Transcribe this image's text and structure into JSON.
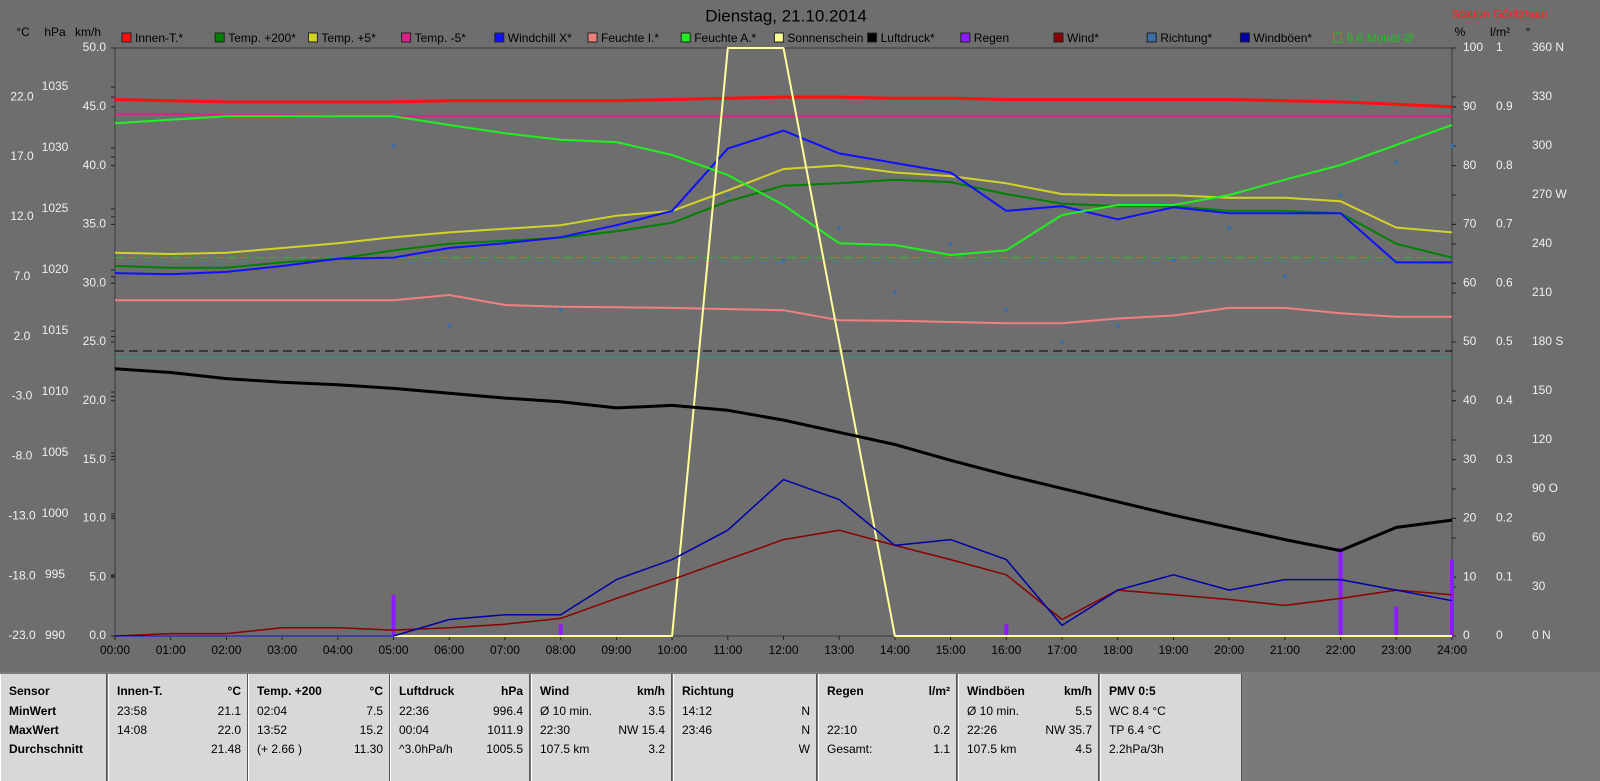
{
  "chart_data": {
    "type": "line",
    "title": "Dienstag, 21.10.2014",
    "station": "Station Göritzhain",
    "grid": false,
    "categories": [
      "00:00",
      "01:00",
      "02:00",
      "03:00",
      "04:00",
      "05:00",
      "06:00",
      "07:00",
      "08:00",
      "09:00",
      "10:00",
      "11:00",
      "12:00",
      "13:00",
      "14:00",
      "15:00",
      "16:00",
      "17:00",
      "18:00",
      "19:00",
      "20:00",
      "21:00",
      "22:00",
      "23:00",
      "24:00"
    ],
    "axes": [
      {
        "label": "°C",
        "lim": [
          -23,
          26.1
        ],
        "ticks": [
          {
            "value": -23,
            "label": "-23.0"
          },
          {
            "value": -18,
            "label": "-18.0"
          },
          {
            "value": -13,
            "label": "-13.0"
          },
          {
            "value": -8,
            "label": "-8.0"
          },
          {
            "value": -3,
            "label": "-3.0"
          },
          {
            "value": 2,
            "label": "2.0"
          },
          {
            "value": 7,
            "label": "7.0"
          },
          {
            "value": 12,
            "label": "12.0"
          },
          {
            "value": 17,
            "label": "17.0"
          },
          {
            "value": 22,
            "label": "22.0"
          }
        ]
      },
      {
        "label": "hPa",
        "lim": [
          990,
          1038.2
        ],
        "ticks": [
          990,
          995,
          1000,
          1005,
          1010,
          1015,
          1020,
          1025,
          1030,
          1035
        ]
      },
      {
        "label": "km/h",
        "lim": [
          0,
          50
        ],
        "ticks": [
          {
            "value": 0,
            "label": "0.0"
          },
          {
            "value": 5,
            "label": "5.0"
          },
          {
            "value": 10,
            "label": "10.0"
          },
          {
            "value": 15,
            "label": "15.0"
          },
          {
            "value": 20,
            "label": "20.0"
          },
          {
            "value": 25,
            "label": "25.0"
          },
          {
            "value": 30,
            "label": "30.0"
          },
          {
            "value": 35,
            "label": "35.0"
          },
          {
            "value": 40,
            "label": "40.0"
          },
          {
            "value": 45,
            "label": "45.0"
          },
          {
            "value": 50,
            "label": "50.0"
          }
        ]
      },
      {
        "label": "%",
        "lim": [
          0,
          100
        ],
        "ticks": [
          0,
          10,
          20,
          30,
          40,
          50,
          60,
          70,
          80,
          90,
          100
        ]
      },
      {
        "label": "l/m²",
        "lim": [
          0,
          1
        ],
        "ticks": [
          0,
          0.1,
          0.2,
          0.3,
          0.4,
          0.5,
          0.6,
          0.7,
          0.8,
          0.9,
          1
        ]
      },
      {
        "label": "°",
        "lim": [
          0,
          360
        ],
        "ticks": [
          {
            "value": 0,
            "label": "0 N"
          },
          30,
          60,
          {
            "value": 90,
            "label": "90 O"
          },
          120,
          150,
          {
            "value": 180,
            "label": "180 S"
          },
          210,
          240,
          {
            "value": 270,
            "label": "270 W"
          },
          300,
          330,
          {
            "value": 360,
            "label": "360 N"
          }
        ]
      }
    ],
    "series": [
      {
        "name": "Innen-T.*",
        "color": "#ff1010",
        "axis": 0,
        "values": [
          21.8,
          21.7,
          21.6,
          21.6,
          21.6,
          21.6,
          21.7,
          21.7,
          21.7,
          21.7,
          21.8,
          21.9,
          22.0,
          22.0,
          21.9,
          21.9,
          21.8,
          21.8,
          21.8,
          21.8,
          21.8,
          21.7,
          21.6,
          21.4,
          21.2
        ]
      },
      {
        "name": "Temp. +200*",
        "color": "#008000",
        "axis": 0,
        "values": [
          7.9,
          7.75,
          7.75,
          8.2,
          8.5,
          9.2,
          9.75,
          10.0,
          10.25,
          10.8,
          11.5,
          13.3,
          14.6,
          14.8,
          15.1,
          14.9,
          13.9,
          13.1,
          12.9,
          12.9,
          12.5,
          12.5,
          12.3,
          9.75,
          8.6
        ]
      },
      {
        "name": "Temp. +5*",
        "color": "#d2d228",
        "axis": 0,
        "values": [
          9.0,
          8.9,
          9.0,
          9.4,
          9.8,
          10.3,
          10.7,
          11.0,
          11.3,
          12.1,
          12.5,
          14.2,
          16.0,
          16.3,
          15.7,
          15.4,
          14.8,
          13.9,
          13.8,
          13.8,
          13.6,
          13.6,
          13.3,
          11.1,
          10.7
        ]
      },
      {
        "name": "Temp. -5*",
        "color": "#e0208a",
        "axis": 0,
        "values": [
          20.6,
          20.6,
          20.5,
          20.5,
          20.4,
          20.4,
          20.4,
          20.4,
          20.4,
          20.4,
          20.4,
          20.4,
          20.4,
          20.4,
          20.4,
          20.4,
          20.4,
          20.4,
          20.4,
          20.4,
          20.4,
          20.4,
          20.4,
          20.4,
          20.4
        ]
      },
      {
        "name": "Windchill X*",
        "color": "#1010ff",
        "axis": 0,
        "values": [
          7.3,
          7.2,
          7.4,
          7.9,
          8.5,
          8.6,
          9.4,
          9.8,
          10.3,
          11.3,
          12.5,
          17.7,
          19.2,
          17.3,
          16.5,
          15.7,
          12.5,
          12.9,
          11.8,
          12.8,
          12.3,
          12.3,
          12.3,
          8.2,
          8.2
        ]
      },
      {
        "name": "Feuchte I.*",
        "color": "#f08080",
        "axis": 3,
        "values": [
          57.1,
          57.1,
          57.1,
          57.1,
          57.1,
          57.1,
          58.0,
          56.3,
          56.0,
          55.9,
          55.8,
          55.6,
          55.4,
          53.7,
          53.6,
          53.4,
          53.2,
          53.2,
          54.0,
          54.5,
          55.8,
          55.8,
          54.9,
          54.3,
          54.3
        ]
      },
      {
        "name": "Feuchte A.*",
        "color": "#20f020",
        "axis": 3,
        "values": [
          87.2,
          87.8,
          88.4,
          88.4,
          88.4,
          88.4,
          86.9,
          85.5,
          84.4,
          84.0,
          81.8,
          78.4,
          73.3,
          66.8,
          66.5,
          64.8,
          65.6,
          71.6,
          73.3,
          73.3,
          75.0,
          77.6,
          80.1,
          83.5,
          86.9
        ]
      },
      {
        "name": "Sonnenschein",
        "color": "#ffff99",
        "axis": 3,
        "values": [
          0,
          0,
          0,
          0,
          0,
          0,
          0,
          0,
          0,
          0,
          0,
          100,
          100,
          50,
          0,
          0,
          0,
          0,
          0,
          0,
          0,
          0,
          0,
          0,
          0
        ]
      },
      {
        "name": "Luftdruck*",
        "color": "#000000",
        "axis": 1,
        "values": [
          1011.9,
          1011.6,
          1011.1,
          1010.8,
          1010.6,
          1010.3,
          1009.9,
          1009.5,
          1009.2,
          1008.7,
          1008.9,
          1008.5,
          1007.7,
          1006.7,
          1005.7,
          1004.4,
          1003.2,
          1002.1,
          1001.0,
          999.9,
          998.9,
          997.9,
          997.0,
          998.9,
          999.5
        ]
      },
      {
        "name": "Regen",
        "color": "#8c1cff",
        "axis": 4,
        "type": "bar",
        "values": [
          0,
          0,
          0,
          0,
          0,
          0.07,
          0,
          0,
          0.02,
          0,
          0,
          0,
          0,
          0,
          0,
          0,
          0.02,
          0,
          0,
          0,
          0,
          0,
          0.15,
          0.05,
          0.13
        ]
      },
      {
        "name": "Wind*",
        "color": "#8b0000",
        "axis": 2,
        "values": [
          0,
          0.2,
          0.2,
          0.7,
          0.7,
          0.5,
          0.7,
          1.0,
          1.5,
          3.2,
          4.8,
          6.5,
          8.2,
          9.0,
          7.7,
          6.5,
          5.2,
          1.4,
          3.9,
          3.5,
          3.1,
          2.6,
          3.2,
          3.9,
          3.5
        ]
      },
      {
        "name": "Richtung*",
        "color": "#3a6ea5",
        "axis": 5,
        "type": "scatter",
        "values": [
          null,
          null,
          null,
          null,
          null,
          300,
          190,
          240,
          200,
          250,
          260,
          270,
          230,
          250,
          210,
          240,
          200,
          180,
          190,
          230,
          250,
          220,
          270,
          290,
          300
        ]
      },
      {
        "name": "Windböen*",
        "color": "#0000a8",
        "axis": 2,
        "values": [
          0,
          0,
          0,
          0,
          0,
          0,
          1.4,
          1.8,
          1.8,
          4.8,
          6.5,
          9.0,
          13.3,
          11.6,
          7.7,
          8.2,
          6.5,
          0.9,
          3.9,
          5.2,
          3.9,
          4.8,
          4.8,
          3.9,
          3.0
        ]
      }
    ],
    "reference_line": {
      "value": 8.6,
      "axis": 0,
      "label": "8.6 Monat-Ø",
      "color": "#20c020"
    }
  },
  "table": {
    "headers": [
      {
        "label": "Sensor"
      },
      {
        "label": "Innen-T.",
        "unit": "°C"
      },
      {
        "label": "Temp. +200",
        "unit": "°C"
      },
      {
        "label": "Luftdruck",
        "unit": "hPa"
      },
      {
        "label": "Wind",
        "unit": "km/h"
      },
      {
        "label": "Richtung"
      },
      {
        "label": "Regen",
        "unit": "l/m²"
      },
      {
        "label": "Windböen",
        "unit": "km/h"
      },
      {
        "label": "PMV 0:5"
      }
    ],
    "rows": [
      {
        "label": "MinWert",
        "cells": [
          {
            "left": "23:58",
            "right": "21.1"
          },
          {
            "left": "02:04",
            "right": "7.5"
          },
          {
            "left": "22:36",
            "right": "996.4"
          },
          {
            "left": "Ø 10 min.",
            "right": "3.5"
          },
          {
            "left": "14:12",
            "right": "N"
          },
          {},
          {
            "left": "Ø 10 min.",
            "right": "5.5"
          },
          {
            "left": "WC 8.4 °C"
          }
        ]
      },
      {
        "label": "MaxWert",
        "cells": [
          {
            "left": "14:08",
            "right": "22.0"
          },
          {
            "left": "13:52",
            "right": "15.2"
          },
          {
            "left": "00:04",
            "right": "1011.9"
          },
          {
            "left": "22:30",
            "right": "NW 15.4"
          },
          {
            "left": "23:46",
            "right": "N"
          },
          {
            "left": "22:10",
            "right": "0.2"
          },
          {
            "left": "22:26",
            "right": "NW 35.7"
          },
          {
            "left": "TP 6.4 °C"
          }
        ]
      },
      {
        "label": "Durchschnitt",
        "cells": [
          {
            "right": "21.48"
          },
          {
            "left": "(+ 2.66 )",
            "right": "11.30"
          },
          {
            "left": "^3.0hPa/h",
            "right": "1005.5"
          },
          {
            "left": "107.5 km",
            "right": "3.2"
          },
          {
            "right": "W"
          },
          {
            "left": "Gesamt:",
            "right": "1.1"
          },
          {
            "left": "107.5 km",
            "right": "4.5"
          },
          {
            "left": "2.2hPa/3h"
          }
        ]
      }
    ]
  }
}
